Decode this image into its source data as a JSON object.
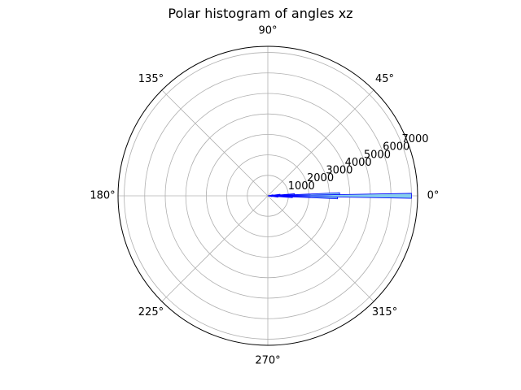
{
  "chart_data": {
    "type": "polar-bar",
    "title": "Polar histogram of angles xz",
    "theta_unit": "degrees",
    "theta_ticks": [
      "0°",
      "45°",
      "90°",
      "135°",
      "180°",
      "225°",
      "270°",
      "315°"
    ],
    "r_ticks": [
      "1000",
      "2000",
      "3000",
      "4000",
      "5000",
      "6000",
      "7000"
    ],
    "rlim": [
      0,
      7300
    ],
    "grid": true,
    "bar_fill": "#87ceeb",
    "bar_edge": "#0000ff",
    "bars": [
      {
        "theta_start": -1.0,
        "theta_end": 1.0,
        "r": 7000
      },
      {
        "theta_start": 1.0,
        "theta_end": 2.5,
        "r": 3500
      },
      {
        "theta_start": -1.0,
        "theta_end": -2.5,
        "r": 3400
      },
      {
        "theta_start": 2.5,
        "theta_end": 4.5,
        "r": 1300
      },
      {
        "theta_start": -2.5,
        "theta_end": -4.5,
        "r": 1200
      },
      {
        "theta_start": 4.5,
        "theta_end": 7.5,
        "r": 600
      },
      {
        "theta_start": -4.5,
        "theta_end": -7.5,
        "r": 500
      },
      {
        "theta_start": 7.5,
        "theta_end": 12,
        "r": 250
      },
      {
        "theta_start": -7.5,
        "theta_end": -12,
        "r": 200
      }
    ]
  }
}
